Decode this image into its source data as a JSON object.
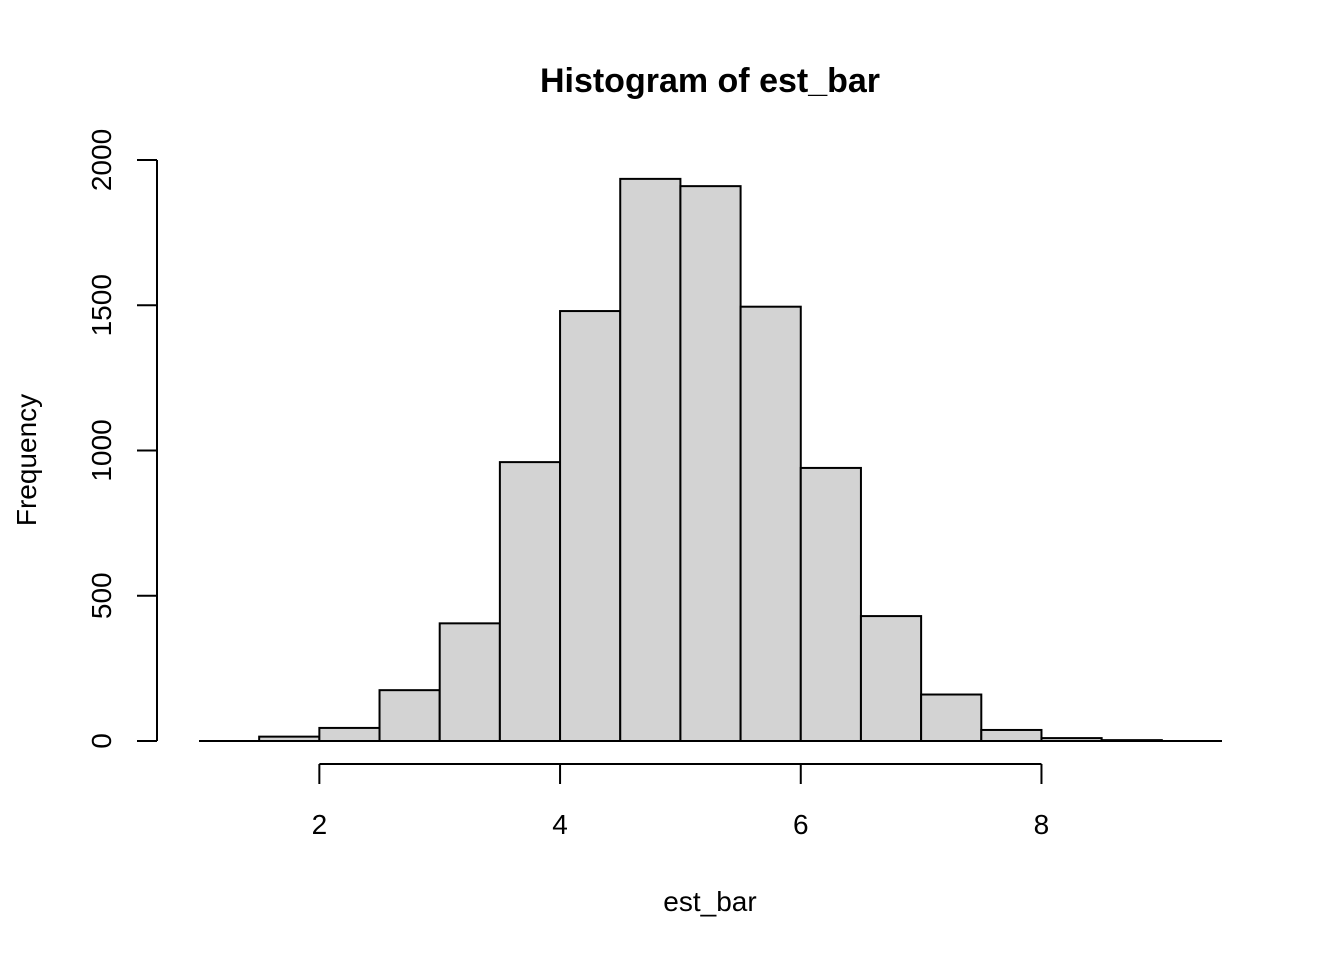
{
  "chart_data": {
    "type": "bar",
    "title": "Histogram of est_bar",
    "xlabel": "est_bar",
    "ylabel": "Frequency",
    "bin_edges": [
      1.5,
      2.0,
      2.5,
      3.0,
      3.5,
      4.0,
      4.5,
      5.0,
      5.5,
      6.0,
      6.5,
      7.0,
      7.5,
      8.0,
      8.5,
      9.0
    ],
    "values": [
      15,
      45,
      175,
      405,
      960,
      1480,
      1935,
      1910,
      1495,
      940,
      430,
      160,
      38,
      10,
      3
    ],
    "xlim": [
      1.0,
      9.5
    ],
    "ylim": [
      0,
      2000
    ],
    "x_ticks": [
      "2",
      "4",
      "6",
      "8"
    ],
    "x_tick_values": [
      2,
      4,
      6,
      8
    ],
    "y_ticks": [
      "0",
      "500",
      "1000",
      "1500",
      "2000"
    ],
    "y_tick_values": [
      0,
      500,
      1000,
      1500,
      2000
    ],
    "grid": false,
    "bar_color": "#d3d3d3",
    "edge_color": "#000000"
  }
}
